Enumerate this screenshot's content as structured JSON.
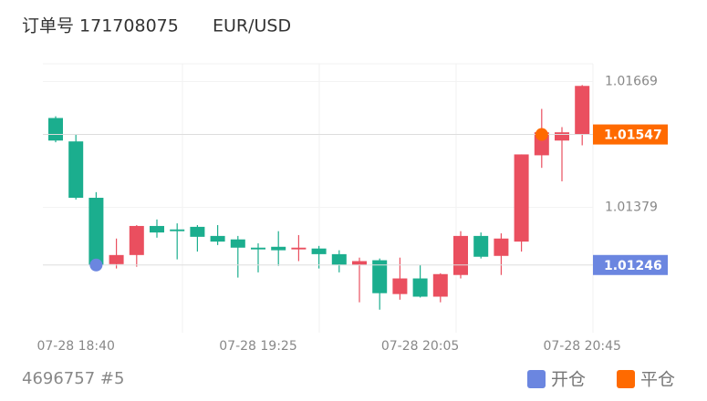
{
  "chart_data": {
    "type": "candlestick",
    "title": "订单号 171708075",
    "subtitle": "EUR/USD",
    "footer": "4696757 #5",
    "categories": [
      null,
      "07-28 18:40",
      null,
      null,
      null,
      null,
      null,
      null,
      null,
      null,
      "07-28 19:25",
      null,
      null,
      null,
      null,
      null,
      null,
      null,
      "07-28 20:05",
      null,
      null,
      null,
      null,
      null,
      null,
      null,
      "07-28 20:45"
    ],
    "open": [
      1.01585,
      1.01531,
      1.01401,
      1.01248,
      1.01269,
      1.01336,
      1.01328,
      1.01334,
      1.01313,
      1.01305,
      1.01286,
      1.01288,
      1.01282,
      1.01284,
      1.01271,
      1.01246,
      1.01257,
      1.01179,
      1.01215,
      1.01173,
      1.01223,
      1.01313,
      1.01267,
      1.013,
      1.01499,
      1.01533,
      1.01548
    ],
    "high": [
      1.01589,
      1.01548,
      1.01414,
      1.01307,
      1.01338,
      1.01351,
      1.01342,
      1.01338,
      1.01338,
      1.01313,
      1.01296,
      1.01324,
      1.01315,
      1.0129,
      1.0128,
      1.01263,
      1.01261,
      1.01263,
      1.01246,
      1.01227,
      1.01324,
      1.01321,
      1.01319,
      1.01501,
      1.01606,
      1.01564,
      1.01661
    ],
    "low": [
      1.01529,
      1.01397,
      1.01242,
      1.01238,
      1.01242,
      1.01309,
      1.01259,
      1.01277,
      1.01292,
      1.01217,
      1.01229,
      1.01244,
      1.01255,
      1.01238,
      1.01229,
      1.0116,
      1.01143,
      1.01166,
      1.01171,
      1.0116,
      1.01215,
      1.01261,
      1.01223,
      1.01277,
      1.0147,
      1.01439,
      1.01522
    ],
    "close": [
      1.01533,
      1.01401,
      1.01246,
      1.01269,
      1.01336,
      1.01321,
      1.01324,
      1.01311,
      1.013,
      1.01286,
      1.01282,
      1.0128,
      1.01286,
      1.01271,
      1.01246,
      1.01255,
      1.01181,
      1.01215,
      1.01173,
      1.01225,
      1.01313,
      1.01265,
      1.01307,
      1.01501,
      1.01552,
      1.01552,
      1.01659
    ],
    "up_color": "#ea4f5f",
    "down_color": "#1bae8e",
    "ylim": [
      1.0109,
      1.0171
    ],
    "yticks": [
      1.01669,
      1.01379
    ],
    "markers": [
      {
        "name": "开仓",
        "value": 1.01246,
        "index": 2,
        "color": "#6b86e0"
      },
      {
        "name": "平仓",
        "value": 1.01547,
        "index": 24,
        "color": "#ff6a00"
      }
    ]
  }
}
